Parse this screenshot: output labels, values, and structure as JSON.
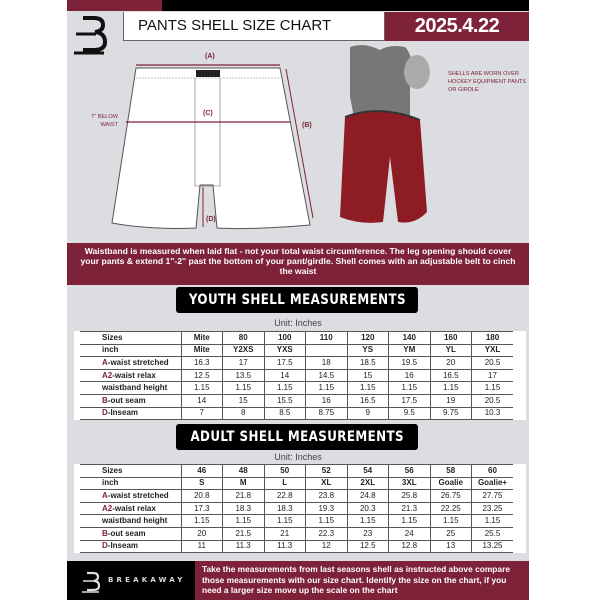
{
  "header": {
    "title": "PANTS SHELL SIZE CHART",
    "date": "2025.4.22"
  },
  "diagram": {
    "label_a": "(A)",
    "label_b": "(B)",
    "label_c": "(C)",
    "label_d": "(D)",
    "below_waist": "7'' BELOW WAIST"
  },
  "photo_note": "SHELLS ARE WORN OVER HOCKEY EQUIPMENT PANTS OR GIRDLE",
  "banner": "Waistband is measured when laid flat - not your total waist circumference. The leg opening should cover your pants & extend 1''-2'' past the bottom of your pant/girdle. Shell comes with an adjustable belt to cinch the waist",
  "youth": {
    "title": "YOUTH SHELL MEASUREMENTS",
    "unit": "Unit: Inches",
    "rows": [
      {
        "label": "Sizes",
        "values": [
          "Mite",
          "80",
          "100",
          "110",
          "120",
          "140",
          "160",
          "180"
        ]
      },
      {
        "label": "inch",
        "values": [
          "Mite",
          "Y2XS",
          "YXS",
          "",
          "YS",
          "YM",
          "YL",
          "YXL"
        ]
      },
      {
        "prefix": "A",
        "label": "-waist stretched",
        "values": [
          "16.3",
          "17",
          "17.5",
          "18",
          "18.5",
          "19.5",
          "20",
          "20.5"
        ]
      },
      {
        "prefix": "A2",
        "label": "-waist relax",
        "values": [
          "12.5",
          "13.5",
          "14",
          "14.5",
          "15",
          "16",
          "16.5",
          "17"
        ]
      },
      {
        "label": "waistband height",
        "values": [
          "1.15",
          "1.15",
          "1.15",
          "1.15",
          "1.15",
          "1.15",
          "1.15",
          "1.15"
        ]
      },
      {
        "prefix": "B",
        "label": "-out seam",
        "values": [
          "14",
          "15",
          "15.5",
          "16",
          "16.5",
          "17.5",
          "19",
          "20.5"
        ]
      },
      {
        "prefix": "D",
        "label": "-Inseam",
        "values": [
          "7",
          "8",
          "8.5",
          "8.75",
          "9",
          "9.5",
          "9.75",
          "10.3"
        ]
      }
    ]
  },
  "adult": {
    "title": "ADULT SHELL MEASUREMENTS",
    "unit": "Unit: Inches",
    "rows": [
      {
        "label": "Sizes",
        "values": [
          "46",
          "48",
          "50",
          "52",
          "54",
          "56",
          "58",
          "60"
        ]
      },
      {
        "label": "inch",
        "values": [
          "S",
          "M",
          "L",
          "XL",
          "2XL",
          "3XL",
          "Goalie",
          "Goalie+"
        ]
      },
      {
        "prefix": "A",
        "label": "-waist stretched",
        "values": [
          "20.8",
          "21.8",
          "22.8",
          "23.8",
          "24.8",
          "25.8",
          "26.75",
          "27.75"
        ]
      },
      {
        "prefix": "A2",
        "label": "-waist relax",
        "values": [
          "17.3",
          "18.3",
          "18.3",
          "19.3",
          "20.3",
          "21.3",
          "22.25",
          "23.25"
        ]
      },
      {
        "label": "waistband height",
        "values": [
          "1.15",
          "1.15",
          "1.15",
          "1.15",
          "1.15",
          "1.15",
          "1.15",
          "1.15"
        ]
      },
      {
        "prefix": "B",
        "label": "-out seam",
        "values": [
          "20",
          "21.5",
          "21",
          "22.3",
          "23",
          "24",
          "25",
          "25.5"
        ]
      },
      {
        "prefix": "D",
        "label": "-Inseam",
        "values": [
          "11",
          "11.3",
          "11.3",
          "12",
          "12.5",
          "12.8",
          "13",
          "13.25"
        ]
      }
    ]
  },
  "footer": {
    "brand": "BREAKAWAY",
    "instructions": "Take the measurements from last seasons shell as instructed above compare those measurements  with our size chart. Identify the size on the chart, if you need a larger size move up the scale on the chart"
  },
  "colors": {
    "brand": "#7d2239",
    "panel": "#dcdde1"
  }
}
